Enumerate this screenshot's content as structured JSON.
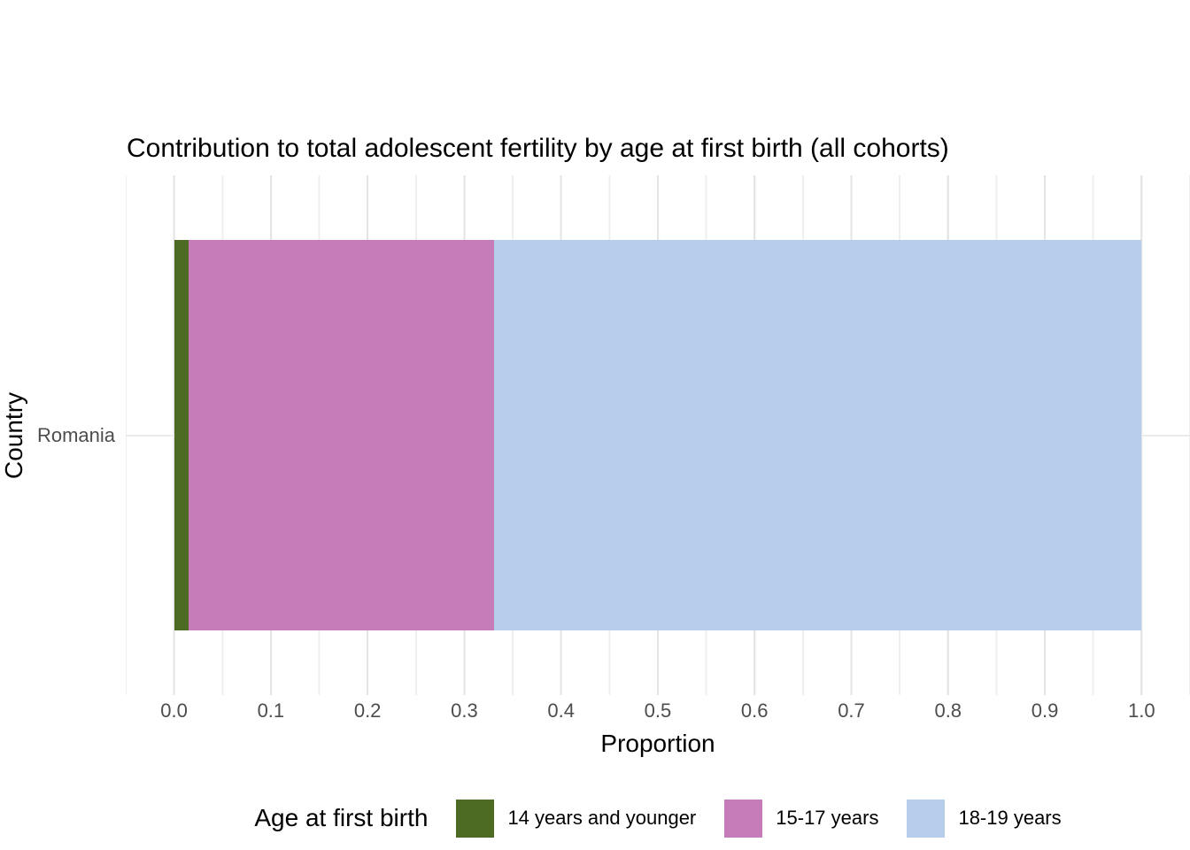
{
  "chart_data": {
    "type": "bar",
    "orientation": "horizontal",
    "stacked": true,
    "title": "Contribution to total adolescent fertility by age at first birth (all cohorts)",
    "xlabel": "Proportion",
    "ylabel": "Country",
    "categories": [
      "Romania"
    ],
    "series": [
      {
        "name": "14 years and younger",
        "color": "#4d6b22",
        "values": [
          0.015
        ]
      },
      {
        "name": "15-17 years",
        "color": "#c77cba",
        "values": [
          0.316
        ]
      },
      {
        "name": "18-19 years",
        "color": "#b6cdec",
        "values": [
          0.669
        ]
      }
    ],
    "xlim": [
      0,
      1
    ],
    "x_tick_labels": [
      "0.0",
      "0.1",
      "0.2",
      "0.3",
      "0.4",
      "0.5",
      "0.6",
      "0.7",
      "0.8",
      "0.9",
      "1.0"
    ],
    "legend_title": "Age at first birth",
    "legend_position": "bottom",
    "grid": "vertical major and minor gridlines light gray, horizontal major gridline at category",
    "gridline_color": "#ebebeb",
    "tick_text_color": "#4d4d4d"
  }
}
